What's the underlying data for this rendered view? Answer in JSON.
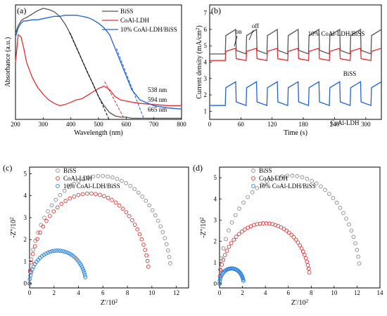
{
  "chart_data": [
    {
      "panel": "(a)",
      "type": "line",
      "xlabel": "Wavelength (nm)",
      "ylabel": "Absorbance (a.u.)",
      "xlim": [
        200,
        800
      ],
      "xticks": [
        200,
        300,
        400,
        500,
        600,
        700,
        800
      ],
      "ylim": [
        0,
        1
      ],
      "legend_position": "top-right",
      "series": [
        {
          "name": "BiSS",
          "color": "#555555",
          "x": [
            200,
            210,
            220,
            230,
            240,
            260,
            280,
            300,
            320,
            340,
            360,
            380,
            400,
            420,
            440,
            460,
            480,
            500,
            520,
            540,
            560,
            580,
            600,
            620,
            650,
            700,
            750,
            800
          ],
          "y": [
            0.75,
            0.82,
            0.86,
            0.88,
            0.89,
            0.92,
            0.95,
            0.97,
            0.96,
            0.94,
            0.9,
            0.83,
            0.74,
            0.63,
            0.52,
            0.41,
            0.31,
            0.2,
            0.12,
            0.06,
            0.03,
            0.02,
            0.02,
            0.01,
            0.01,
            0.01,
            0.01,
            0.01
          ]
        },
        {
          "name": "CoAl-LDH",
          "color": "#e03030",
          "x": [
            200,
            210,
            220,
            230,
            240,
            260,
            280,
            300,
            320,
            340,
            360,
            380,
            400,
            420,
            440,
            460,
            480,
            500,
            520,
            540,
            560,
            580,
            600,
            620,
            650,
            700,
            750,
            800
          ],
          "y": [
            0.5,
            0.74,
            0.72,
            0.62,
            0.5,
            0.37,
            0.28,
            0.22,
            0.17,
            0.14,
            0.12,
            0.13,
            0.15,
            0.17,
            0.18,
            0.21,
            0.24,
            0.27,
            0.29,
            0.26,
            0.2,
            0.17,
            0.16,
            0.15,
            0.14,
            0.13,
            0.12,
            0.12
          ]
        },
        {
          "name": "10% CoAl-LDH/BiSS",
          "color": "#1e64d2",
          "x": [
            200,
            210,
            220,
            230,
            240,
            260,
            280,
            300,
            320,
            340,
            360,
            380,
            400,
            420,
            440,
            460,
            480,
            500,
            520,
            540,
            560,
            580,
            600,
            620,
            650,
            700,
            750,
            800
          ],
          "y": [
            0.72,
            0.8,
            0.84,
            0.86,
            0.86,
            0.87,
            0.87,
            0.88,
            0.89,
            0.9,
            0.9,
            0.91,
            0.91,
            0.91,
            0.9,
            0.89,
            0.87,
            0.84,
            0.8,
            0.74,
            0.62,
            0.5,
            0.38,
            0.26,
            0.17,
            0.12,
            0.1,
            0.09
          ]
        }
      ],
      "annotations": [
        {
          "text": "538 nm",
          "color": "#000000"
        },
        {
          "text": "594 nm",
          "color": "#e03030"
        },
        {
          "text": "665 nm",
          "color": "#1e64d2"
        }
      ]
    },
    {
      "panel": "(b)",
      "type": "line",
      "xlabel": "Time (s)",
      "ylabel": "Current density (mA/cm^2)",
      "xlim": [
        0,
        330
      ],
      "xticks": [
        0,
        60,
        120,
        180,
        240,
        300
      ],
      "yticks": [
        1,
        2,
        3,
        4,
        5,
        6,
        7
      ],
      "ylim": [
        0.5,
        7.5
      ],
      "annotations": [
        {
          "text": "on"
        },
        {
          "text": "off"
        }
      ],
      "series": [
        {
          "name": "10% CoAl-LDH/BiSS",
          "color": "#555555",
          "low": 4.5,
          "high": 6.0
        },
        {
          "name": "BiSS",
          "color": "#e03030",
          "low": 4.1,
          "high": 4.85
        },
        {
          "name": "CoAl-LDH",
          "color": "#1e64d2",
          "low": 1.35,
          "high": 2.8
        }
      ]
    },
    {
      "panel": "(c)",
      "type": "scatter",
      "xlabel": "Z'/10^2",
      "ylabel": "-Z''/10^2",
      "xlim": [
        0,
        13
      ],
      "xticks": [
        0,
        2,
        4,
        6,
        8,
        10,
        12
      ],
      "ylim": [
        -0.2,
        5.3
      ],
      "yticks": [
        0,
        1,
        2,
        3,
        4,
        5
      ],
      "legend_position": "top-right",
      "series": [
        {
          "name": "BiSS",
          "color": "#888888",
          "x0": 0,
          "x1": 11.6,
          "peak": 4.9,
          "npts": 42
        },
        {
          "name": "CoAl-LDH",
          "color": "#e03030",
          "x0": 0,
          "x1": 9.8,
          "peak": 4.1,
          "npts": 40
        },
        {
          "name": "10% CoAl-LDH/BiSS",
          "color": "#1e7bd8",
          "x0": 0,
          "x1": 4.6,
          "peak": 1.5,
          "npts": 38
        }
      ]
    },
    {
      "panel": "(d)",
      "type": "scatter",
      "xlabel": "Z'/10^2",
      "ylabel": "-Z''/10^2",
      "xlim": [
        0,
        14
      ],
      "xticks": [
        0,
        2,
        4,
        6,
        8,
        10,
        12,
        14
      ],
      "ylim": [
        -0.2,
        5.5
      ],
      "yticks": [
        0,
        1,
        2,
        3,
        4,
        5
      ],
      "legend_position": "top-right",
      "series": [
        {
          "name": "BiSS",
          "color": "#888888",
          "x0": 0,
          "x1": 12.3,
          "peak": 5.1,
          "npts": 40
        },
        {
          "name": "CoAl-LDH",
          "color": "#e03030",
          "x0": 0,
          "x1": 7.9,
          "peak": 2.85,
          "npts": 42
        },
        {
          "name": "10% CoAl-LDH/BiSS",
          "color": "#1e7bd8",
          "x0": 0,
          "x1": 2.1,
          "peak": 0.72,
          "npts": 30
        }
      ]
    }
  ]
}
